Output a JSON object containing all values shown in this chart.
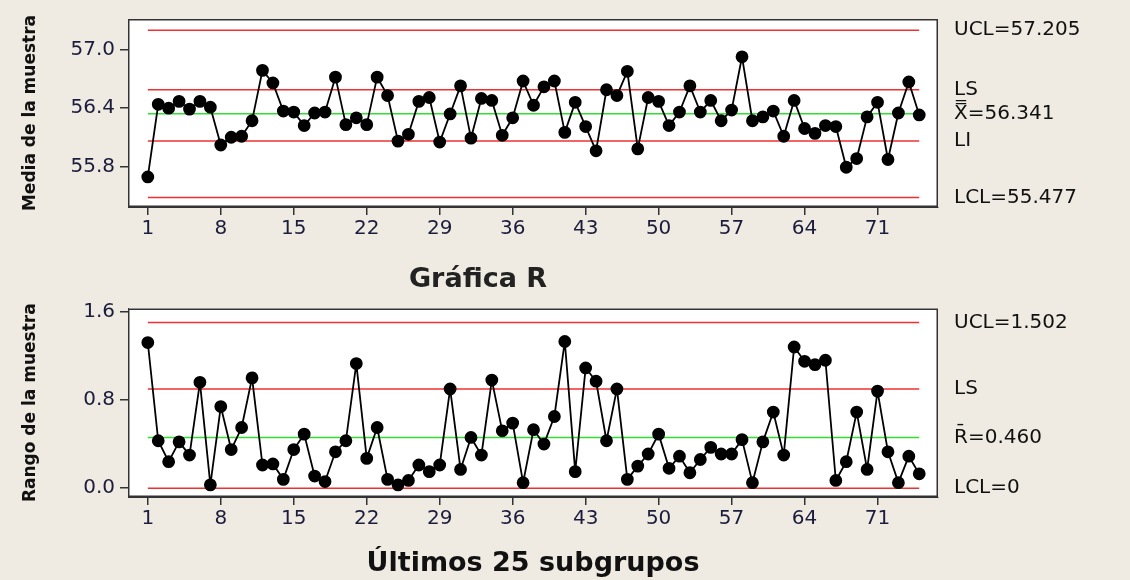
{
  "chart_data": [
    {
      "type": "line",
      "ylabel": "Media de la muestra",
      "color": "#000000",
      "marker": "circle",
      "x": [
        1,
        2,
        3,
        4,
        5,
        6,
        7,
        8,
        9,
        10,
        11,
        12,
        13,
        14,
        15,
        16,
        17,
        18,
        19,
        20,
        21,
        22,
        23,
        24,
        25,
        26,
        27,
        28,
        29,
        30,
        31,
        32,
        33,
        34,
        35,
        36,
        37,
        38,
        39,
        40,
        41,
        42,
        43,
        44,
        45,
        46,
        47,
        48,
        49,
        50,
        51,
        52,
        53,
        54,
        55,
        56,
        57,
        58,
        59,
        60,
        61,
        62,
        63,
        64,
        65,
        66,
        67,
        68,
        69,
        70,
        71,
        72,
        73,
        74,
        75
      ],
      "values": [
        55.69,
        56.44,
        56.4,
        56.47,
        56.39,
        56.47,
        56.41,
        56.02,
        56.1,
        56.11,
        56.27,
        56.79,
        56.66,
        56.37,
        56.36,
        56.22,
        56.35,
        56.36,
        56.72,
        56.23,
        56.3,
        56.23,
        56.72,
        56.53,
        56.06,
        56.13,
        56.47,
        56.51,
        56.05,
        56.34,
        56.63,
        56.09,
        56.5,
        56.48,
        56.12,
        56.3,
        56.68,
        56.43,
        56.62,
        56.68,
        56.15,
        56.46,
        56.21,
        55.96,
        56.59,
        56.53,
        56.78,
        55.98,
        56.51,
        56.47,
        56.22,
        56.36,
        56.63,
        56.36,
        56.48,
        56.27,
        56.38,
        56.93,
        56.27,
        56.31,
        56.37,
        56.11,
        56.48,
        56.19,
        56.14,
        56.22,
        56.21,
        55.79,
        55.88,
        56.31,
        56.46,
        55.87,
        56.35,
        56.67,
        56.33
      ],
      "xlim": [
        -0.9,
        76.8
      ],
      "xticks": [
        1,
        8,
        15,
        22,
        29,
        36,
        43,
        50,
        57,
        64,
        71
      ],
      "ylim": [
        55.38,
        57.32
      ],
      "yticks": [
        55.8,
        56.4,
        {
          "value": 57,
          "label": "57.0"
        }
      ],
      "ref_lines": [
        {
          "axis": "y",
          "value": 57.205,
          "label": "UCL=57.205",
          "color": "#f03030"
        },
        {
          "axis": "y",
          "value": 56.59,
          "label": "LS",
          "color": "#f03030"
        },
        {
          "axis": "y",
          "value": 56.341,
          "label": "X̿=56.341",
          "color": "#30e030"
        },
        {
          "axis": "y",
          "value": 56.06,
          "label": "LI",
          "color": "#f03030"
        },
        {
          "axis": "y",
          "value": 55.477,
          "label": "LCL=55.477",
          "color": "#f03030"
        }
      ]
    },
    {
      "type": "line",
      "title": "Gráfica R",
      "xlabel": "Últimos 25 subgrupos",
      "ylabel": "Rango de la muestra",
      "color": "#000000",
      "marker": "circle",
      "x": [
        1,
        2,
        3,
        4,
        5,
        6,
        7,
        8,
        9,
        10,
        11,
        12,
        13,
        14,
        15,
        16,
        17,
        18,
        19,
        20,
        21,
        22,
        23,
        24,
        25,
        26,
        27,
        28,
        29,
        30,
        31,
        32,
        33,
        34,
        35,
        36,
        37,
        38,
        39,
        40,
        41,
        42,
        43,
        44,
        45,
        46,
        47,
        48,
        49,
        50,
        51,
        52,
        53,
        54,
        55,
        56,
        57,
        58,
        59,
        60,
        61,
        62,
        63,
        64,
        65,
        66,
        67,
        68,
        69,
        70,
        71,
        72,
        73,
        74,
        75
      ],
      "values": [
        1.32,
        0.43,
        0.24,
        0.42,
        0.3,
        0.96,
        0.03,
        0.74,
        0.35,
        0.55,
        1.0,
        0.21,
        0.22,
        0.08,
        0.35,
        0.49,
        0.11,
        0.06,
        0.33,
        0.43,
        1.13,
        0.27,
        0.55,
        0.08,
        0.03,
        0.07,
        0.21,
        0.15,
        0.21,
        0.9,
        0.17,
        0.46,
        0.3,
        0.98,
        0.52,
        0.59,
        0.05,
        0.53,
        0.4,
        0.65,
        1.33,
        0.15,
        1.09,
        0.97,
        0.43,
        0.9,
        0.08,
        0.2,
        0.31,
        0.49,
        0.18,
        0.29,
        0.14,
        0.26,
        0.37,
        0.31,
        0.31,
        0.44,
        0.05,
        0.42,
        0.69,
        0.3,
        1.28,
        1.15,
        1.12,
        1.16,
        0.07,
        0.24,
        0.69,
        0.17,
        0.88,
        0.33,
        0.05,
        0.29,
        0.13
      ],
      "xlim": [
        -0.9,
        76.8
      ],
      "xticks": [
        1,
        8,
        15,
        22,
        29,
        36,
        43,
        50,
        57,
        64,
        71
      ],
      "ylim": [
        -0.08,
        1.63
      ],
      "yticks": [
        {
          "value": 0,
          "label": "0.0"
        },
        0.8,
        1.6
      ],
      "ref_lines": [
        {
          "axis": "y",
          "value": 1.502,
          "label": "UCL=1.502",
          "color": "#f03030"
        },
        {
          "axis": "y",
          "value": 0.9,
          "label": "LS",
          "color": "#f03030"
        },
        {
          "axis": "y",
          "value": 0.46,
          "label": "R̄=0.460",
          "color": "#30e030"
        },
        {
          "axis": "y",
          "value": 0,
          "label": "LCL=0",
          "color": "#f03030"
        }
      ]
    }
  ]
}
